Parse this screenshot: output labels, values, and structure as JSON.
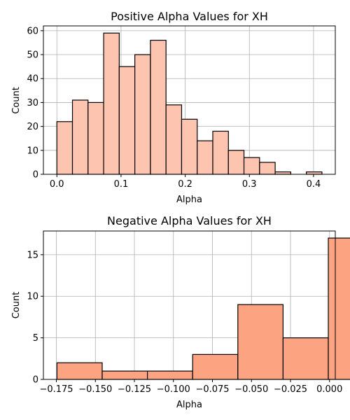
{
  "chart_data": [
    {
      "type": "bar",
      "title": "Positive Alpha Values for XH",
      "xlabel": "Alpha",
      "ylabel": "Count",
      "bin_start": 0.0,
      "bin_width": 0.0243,
      "values": [
        22,
        31,
        30,
        59,
        45,
        50,
        56,
        29,
        23,
        14,
        18,
        10,
        7,
        5,
        1,
        0,
        1
      ],
      "xlim": [
        -0.021,
        0.4339
      ],
      "ylim": [
        0,
        62
      ],
      "xticks": [
        0.0,
        0.1,
        0.2,
        0.3,
        0.4
      ],
      "xtick_labels": [
        "0.0",
        "0.1",
        "0.2",
        "0.3",
        "0.4"
      ],
      "yticks": [
        0,
        10,
        20,
        30,
        40,
        50,
        60
      ],
      "ytick_labels": [
        "0",
        "10",
        "20",
        "30",
        "40",
        "50",
        "60"
      ],
      "grid": true,
      "bar_color": "#fdc5b0"
    },
    {
      "type": "bar",
      "title": "Negative Alpha Values for XH",
      "xlabel": "Alpha",
      "ylabel": "Count",
      "bin_start": -0.1746,
      "bin_width": 0.02897,
      "values": [
        2,
        1,
        1,
        3,
        9,
        5,
        17
      ],
      "xlim": [
        -0.1833,
        0.0037
      ],
      "ylim": [
        0,
        17.85
      ],
      "xticks": [
        -0.175,
        -0.15,
        -0.125,
        -0.1,
        -0.075,
        -0.05,
        -0.025,
        0.0
      ],
      "xtick_labels": [
        "−0.175",
        "−0.150",
        "−0.125",
        "−0.100",
        "−0.075",
        "−0.050",
        "−0.025",
        "0.000"
      ],
      "yticks": [
        0,
        5,
        10,
        15
      ],
      "ytick_labels": [
        "0",
        "5",
        "10",
        "15"
      ],
      "grid": true,
      "bar_color": "#fca482"
    }
  ]
}
